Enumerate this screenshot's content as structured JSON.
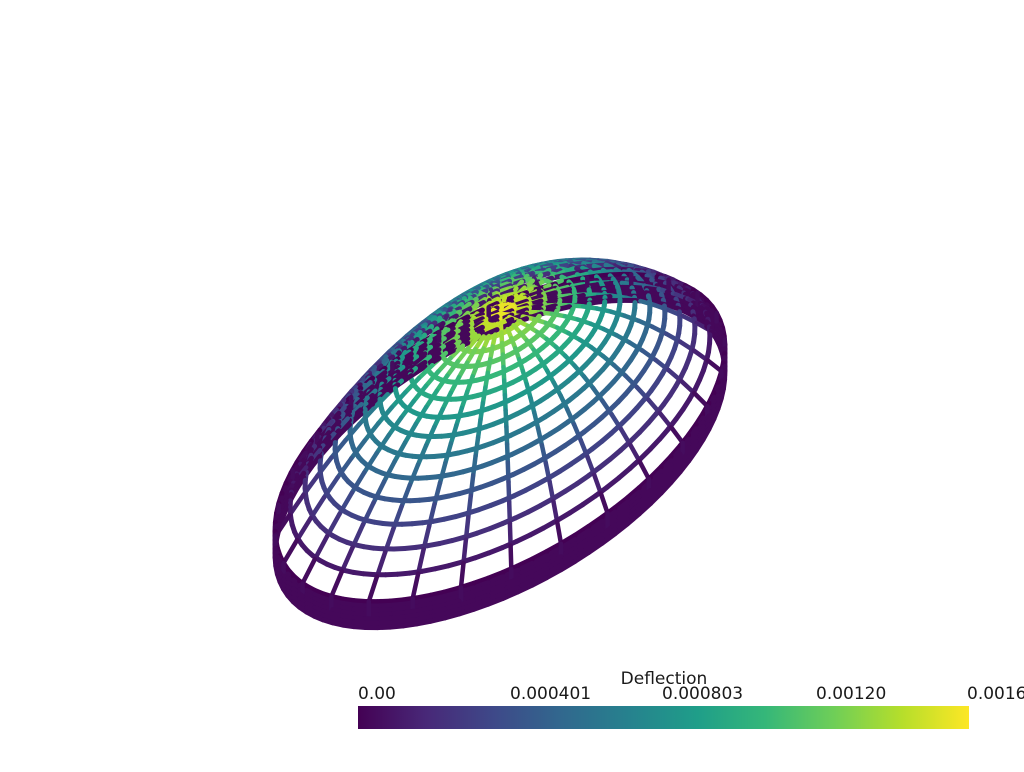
{
  "colormap": {
    "name": "viridis",
    "stops": [
      "#440154",
      "#482878",
      "#3e4989",
      "#31688e",
      "#26828e",
      "#1f9e89",
      "#35b779",
      "#6ece58",
      "#b5de2b",
      "#fde725"
    ]
  },
  "background_color": "#ffffff",
  "scalar_bar": {
    "title": "Deflection",
    "tick_labels": [
      "0.00",
      "0.000401",
      "0.000803",
      "0.00120",
      "0.0016"
    ]
  }
}
